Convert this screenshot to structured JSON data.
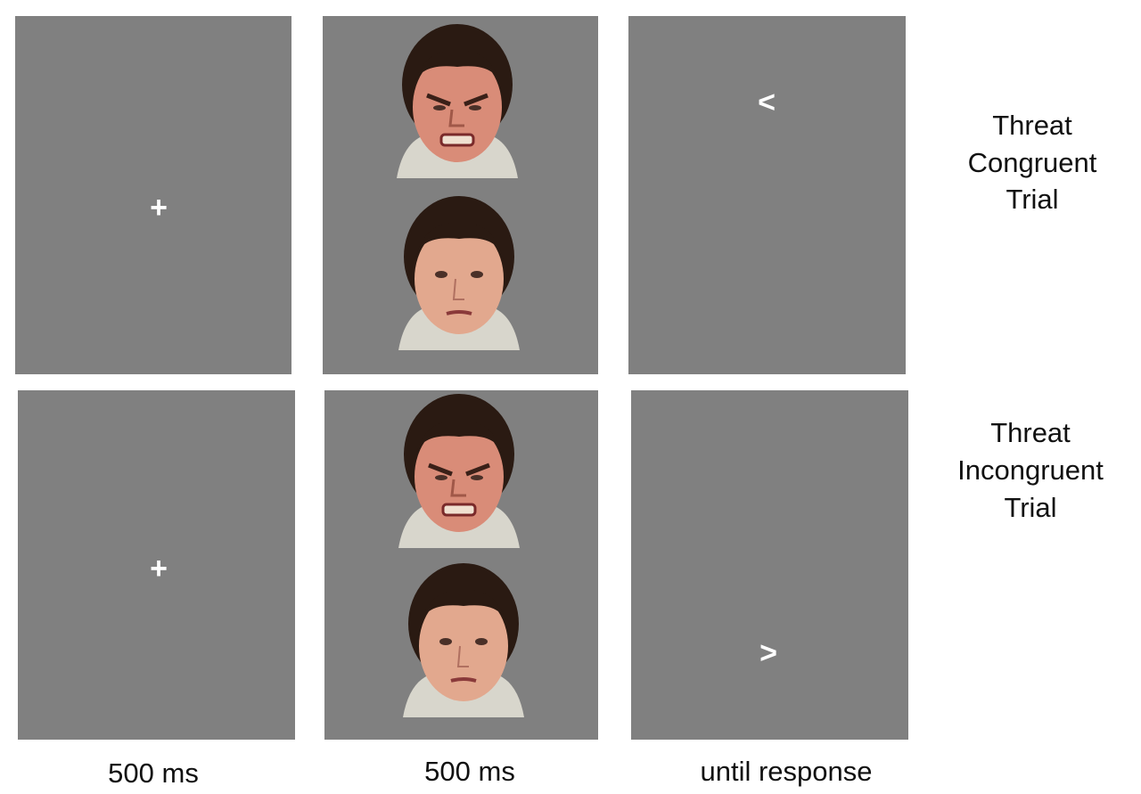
{
  "trials": [
    {
      "label": [
        "Threat",
        "Congruent",
        "Trial"
      ],
      "fixation": "+",
      "probe": "<"
    },
    {
      "label": [
        "Threat",
        "Incongruent",
        "Trial"
      ],
      "fixation": "+",
      "probe": ">"
    }
  ],
  "timings": [
    "500 ms",
    "500 ms",
    "until response"
  ]
}
